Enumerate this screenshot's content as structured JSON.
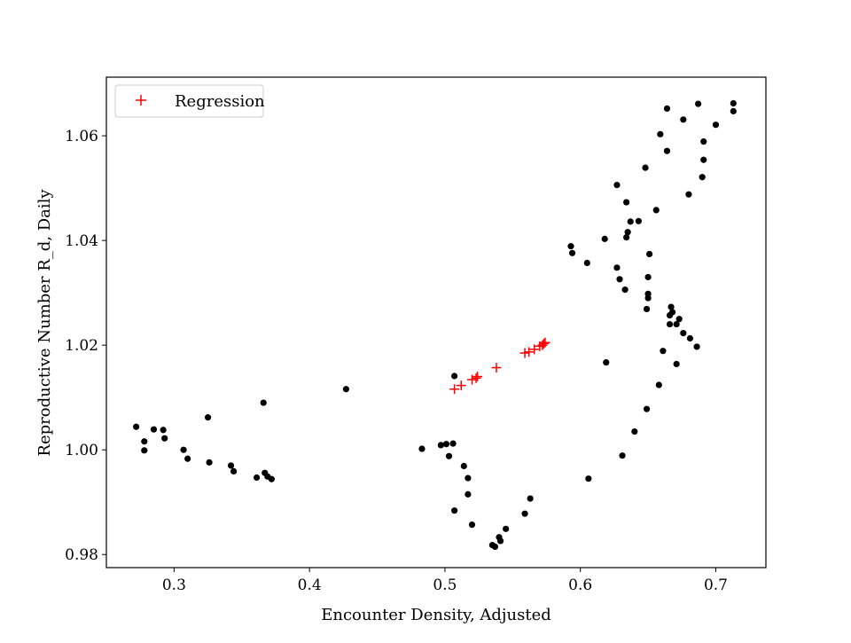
{
  "chart_data": {
    "type": "scatter",
    "title": "",
    "xlabel": "Encounter Density, Adjusted",
    "ylabel": "Reproductive Number R_d, Daily",
    "xlim": [
      0.25,
      0.737
    ],
    "ylim": [
      0.9775,
      1.0712
    ],
    "xticks": [
      0.3,
      0.4,
      0.5,
      0.6,
      0.7
    ],
    "yticks": [
      0.98,
      1.0,
      1.02,
      1.04,
      1.06
    ],
    "xtick_labels": [
      "0.3",
      "0.4",
      "0.5",
      "0.6",
      "0.7"
    ],
    "ytick_labels": [
      "0.98",
      "1.00",
      "1.02",
      "1.04",
      "1.06"
    ],
    "grid": false,
    "legend": {
      "position": "upper-left",
      "entries": [
        "Regression"
      ]
    },
    "colors": {
      "observed": "#000000",
      "regression": "#ff0000"
    },
    "series": [
      {
        "marker": "dot",
        "points": [
          [
            0.272,
            1.0044
          ],
          [
            0.278,
            1.0016
          ],
          [
            0.278,
            0.9999
          ],
          [
            0.285,
            1.0039
          ],
          [
            0.292,
            1.0038
          ],
          [
            0.293,
            1.0022
          ],
          [
            0.307,
            1.0
          ],
          [
            0.31,
            0.9983
          ],
          [
            0.325,
            1.0062
          ],
          [
            0.326,
            0.9976
          ],
          [
            0.342,
            0.997
          ],
          [
            0.344,
            0.9959
          ],
          [
            0.361,
            0.9947
          ],
          [
            0.366,
            1.009
          ],
          [
            0.367,
            0.9956
          ],
          [
            0.369,
            0.9949
          ],
          [
            0.372,
            0.9944
          ],
          [
            0.427,
            1.0116
          ],
          [
            0.483,
            1.0002
          ],
          [
            0.497,
            1.0009
          ],
          [
            0.501,
            1.0011
          ],
          [
            0.503,
            0.9988
          ],
          [
            0.506,
            1.0012
          ],
          [
            0.507,
            1.0141
          ],
          [
            0.507,
            0.9884
          ],
          [
            0.514,
            0.9969
          ],
          [
            0.517,
            0.9946
          ],
          [
            0.517,
            0.9915
          ],
          [
            0.52,
            0.9857
          ],
          [
            0.535,
            0.9818
          ],
          [
            0.537,
            0.9815
          ],
          [
            0.54,
            0.9833
          ],
          [
            0.541,
            0.9826
          ],
          [
            0.545,
            0.9849
          ],
          [
            0.559,
            0.9878
          ],
          [
            0.563,
            0.9907
          ],
          [
            0.593,
            1.0389
          ],
          [
            0.594,
            1.0376
          ],
          [
            0.605,
            1.0357
          ],
          [
            0.606,
            0.9945
          ],
          [
            0.618,
            1.0403
          ],
          [
            0.619,
            1.0167
          ],
          [
            0.627,
            1.0506
          ],
          [
            0.627,
            1.0348
          ],
          [
            0.629,
            1.0326
          ],
          [
            0.631,
            0.9989
          ],
          [
            0.633,
            1.0306
          ],
          [
            0.634,
            1.0473
          ],
          [
            0.634,
            1.0406
          ],
          [
            0.635,
            1.0416
          ],
          [
            0.637,
            1.0436
          ],
          [
            0.64,
            1.0035
          ],
          [
            0.643,
            1.0437
          ],
          [
            0.648,
            1.0539
          ],
          [
            0.649,
            1.0269
          ],
          [
            0.649,
            1.0078
          ],
          [
            0.65,
            1.0298
          ],
          [
            0.65,
            1.033
          ],
          [
            0.65,
            1.029
          ],
          [
            0.651,
            1.0374
          ],
          [
            0.656,
            1.0458
          ],
          [
            0.658,
            1.0124
          ],
          [
            0.659,
            1.0603
          ],
          [
            0.661,
            1.0189
          ],
          [
            0.664,
            1.0652
          ],
          [
            0.664,
            1.0571
          ],
          [
            0.666,
            1.0257
          ],
          [
            0.666,
            1.024
          ],
          [
            0.667,
            1.0273
          ],
          [
            0.668,
            1.0263
          ],
          [
            0.671,
            1.0164
          ],
          [
            0.671,
            1.024
          ],
          [
            0.673,
            1.025
          ],
          [
            0.676,
            1.0631
          ],
          [
            0.676,
            1.0223
          ],
          [
            0.68,
            1.0488
          ],
          [
            0.681,
            1.0213
          ],
          [
            0.686,
            1.0197
          ],
          [
            0.687,
            1.0661
          ],
          [
            0.69,
            1.0521
          ],
          [
            0.691,
            1.0589
          ],
          [
            0.691,
            1.0554
          ],
          [
            0.7,
            1.0621
          ],
          [
            0.713,
            1.0662
          ],
          [
            0.713,
            1.0647
          ]
        ]
      },
      {
        "name": "Regression",
        "marker": "plus",
        "points": [
          [
            0.507,
            1.0116
          ],
          [
            0.512,
            1.0123
          ],
          [
            0.52,
            1.0134
          ],
          [
            0.523,
            1.0137
          ],
          [
            0.524,
            1.014
          ],
          [
            0.538,
            1.0157
          ],
          [
            0.559,
            1.0185
          ],
          [
            0.562,
            1.0187
          ],
          [
            0.566,
            1.0192
          ],
          [
            0.57,
            1.0198
          ],
          [
            0.572,
            1.02
          ],
          [
            0.573,
            1.0203
          ],
          [
            0.574,
            1.0205
          ]
        ]
      }
    ]
  }
}
